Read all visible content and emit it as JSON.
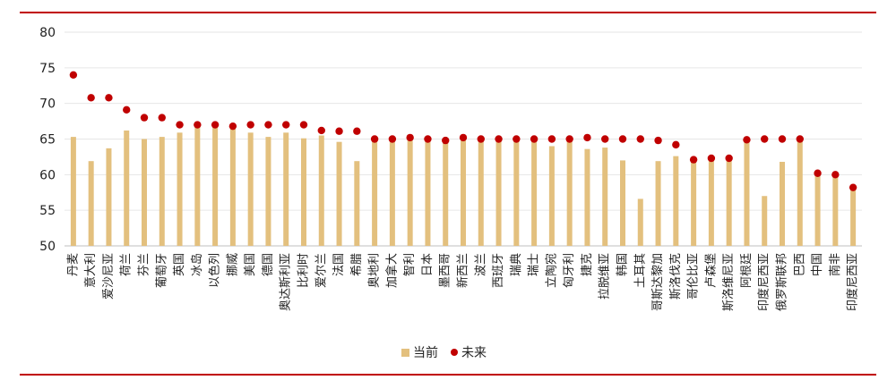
{
  "chart_data": {
    "type": "bar",
    "categories": [
      "丹麦",
      "意大利",
      "爱沙尼亚",
      "荷兰",
      "芬兰",
      "葡萄牙",
      "英国",
      "冰岛",
      "以色列",
      "挪威",
      "美国",
      "德国",
      "奥达斯利亚",
      "比利时",
      "爱尔兰",
      "法国",
      "希腊",
      "奥地利",
      "加拿大",
      "智利",
      "日本",
      "墨西哥",
      "新西兰",
      "波兰",
      "西班牙",
      "瑞典",
      "瑞士",
      "立陶宛",
      "匈牙利",
      "捷克",
      "拉脱维亚",
      "韩国",
      "土耳其",
      "哥斯达黎加",
      "斯洛伐克",
      "哥伦比亚",
      "卢森堡",
      "斯洛维尼亚",
      "阿根廷",
      "印度尼西亚",
      "俄罗斯联邦",
      "巴西",
      "中国",
      "南非",
      "印度尼西亚"
    ],
    "series": [
      {
        "name": "当前",
        "type": "bar",
        "color": "#e3c07e",
        "values": [
          65.3,
          61.9,
          63.7,
          66.2,
          65.0,
          65.3,
          65.9,
          66.8,
          66.8,
          66.4,
          65.9,
          65.3,
          65.9,
          65.1,
          65.5,
          64.6,
          61.9,
          64.8,
          65.0,
          65.3,
          64.8,
          64.7,
          65.0,
          65.0,
          65.0,
          64.9,
          65.0,
          64.0,
          65.1,
          63.6,
          63.8,
          62.0,
          56.6,
          61.9,
          62.6,
          61.9,
          62.0,
          62.0,
          65.0,
          57.0,
          61.8,
          65.0,
          60.0,
          60.0,
          58.0
        ]
      },
      {
        "name": "未来",
        "type": "scatter",
        "color": "#c00000",
        "values": [
          74.0,
          70.8,
          70.8,
          69.1,
          68.0,
          68.0,
          67.0,
          67.0,
          67.0,
          66.8,
          67.0,
          67.0,
          67.0,
          67.0,
          66.2,
          66.1,
          66.1,
          65.0,
          65.0,
          65.2,
          65.0,
          64.8,
          65.2,
          65.0,
          65.0,
          65.0,
          65.0,
          65.0,
          65.0,
          65.2,
          65.0,
          65.0,
          65.0,
          64.8,
          64.2,
          62.1,
          62.3,
          62.3,
          64.9,
          65.0,
          65.0,
          65.0,
          60.2,
          60.0,
          58.2
        ]
      }
    ],
    "xlabel": "",
    "ylabel": "",
    "ylim": [
      50,
      80
    ],
    "yticks": [
      50,
      55,
      60,
      65,
      70,
      75,
      80
    ],
    "grid": true,
    "legend": "bottom-center"
  },
  "legend": {
    "current_label": "当前",
    "future_label": "未来"
  }
}
